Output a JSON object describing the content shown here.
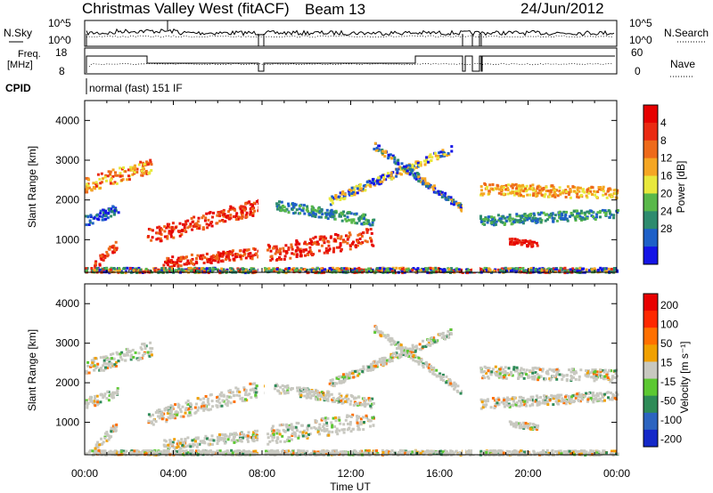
{
  "header": {
    "station": "Christmas Valley West (fitACF)",
    "beam": "Beam 13",
    "date": "24/Jun/2012"
  },
  "nsky_panel": {
    "left_label": "N.Sky",
    "right_label": "N.Search",
    "left_ticks": [
      "10^5",
      "10^0"
    ],
    "right_ticks": [
      "10^5",
      "10^0"
    ]
  },
  "freq_panel": {
    "left_label": "Freq.",
    "left_unit": "[MHz]",
    "right_label": "Nave",
    "left_ticks": [
      "18",
      "8"
    ],
    "right_ticks": [
      "60",
      "0"
    ]
  },
  "cpid_panel": {
    "label": "CPID",
    "program": "normal (fast) 151 IF"
  },
  "chart_data": [
    {
      "type": "heatmap",
      "name": "power",
      "ylabel": "Slant Range [km]",
      "yticks": [
        "4000",
        "3000",
        "2000",
        "1000"
      ],
      "ylim": [
        180,
        4500
      ],
      "colorbar": {
        "label": "Power [dB]",
        "ticks": [
          "4",
          "8",
          "12",
          "16",
          "20",
          "24",
          "28"
        ],
        "colors": [
          "#1414e6",
          "#1e60c8",
          "#2e8b6e",
          "#59b84a",
          "#e8e83c",
          "#f5a623",
          "#ee6a1a",
          "#ea2a12",
          "#e60000"
        ]
      }
    },
    {
      "type": "heatmap",
      "name": "velocity",
      "ylabel": "Slant Range [km]",
      "yticks": [
        "4000",
        "3000",
        "2000",
        "1000"
      ],
      "ylim": [
        180,
        4500
      ],
      "colorbar": {
        "label": "Velocity [m s⁻¹]",
        "ticks": [
          "200",
          "100",
          "50",
          "15",
          "-15",
          "-50",
          "-100",
          "-200"
        ],
        "colors": [
          "#1428c8",
          "#2c64c0",
          "#2e8b57",
          "#5cc832",
          "#c8c8c0",
          "#f0a000",
          "#ff7000",
          "#ff2800",
          "#e80000"
        ]
      }
    }
  ],
  "xaxis": {
    "label": "Time UT",
    "ticks": [
      "00:00",
      "04:00",
      "08:00",
      "12:00",
      "16:00",
      "20:00",
      "00:00"
    ]
  }
}
